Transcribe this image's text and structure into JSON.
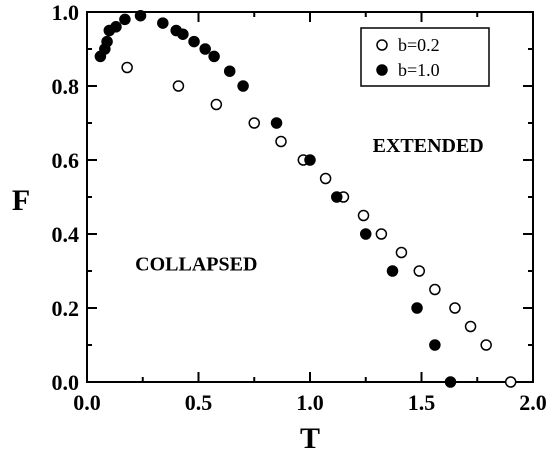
{
  "chart_data": {
    "type": "scatter",
    "xlabel": "T",
    "ylabel": "F",
    "xlim": [
      0.0,
      2.0
    ],
    "ylim": [
      0.0,
      1.0
    ],
    "x_ticks": [
      0.0,
      0.5,
      1.0,
      1.5,
      2.0
    ],
    "x_tick_labels": [
      "0.0",
      "0.5",
      "1.0",
      "1.5",
      "2.0"
    ],
    "y_ticks": [
      0.0,
      0.2,
      0.4,
      0.6,
      0.8,
      1.0
    ],
    "y_tick_labels": [
      "0.0",
      "0.2",
      "0.4",
      "0.6",
      "0.8",
      "1.0"
    ],
    "grid": false,
    "legend_position": "top-right",
    "annotations": [
      {
        "text": "EXTENDED",
        "x": 1.53,
        "y": 0.64
      },
      {
        "text": "COLLAPSED",
        "x": 0.49,
        "y": 0.32
      }
    ],
    "series": [
      {
        "name": "b=0.2",
        "marker": "open-circle",
        "color": "#000000",
        "points": [
          [
            0.18,
            0.85
          ],
          [
            0.41,
            0.8
          ],
          [
            0.58,
            0.75
          ],
          [
            0.75,
            0.7
          ],
          [
            0.87,
            0.65
          ],
          [
            0.97,
            0.6
          ],
          [
            1.07,
            0.55
          ],
          [
            1.15,
            0.5
          ],
          [
            1.24,
            0.45
          ],
          [
            1.32,
            0.4
          ],
          [
            1.41,
            0.35
          ],
          [
            1.49,
            0.3
          ],
          [
            1.56,
            0.25
          ],
          [
            1.65,
            0.2
          ],
          [
            1.72,
            0.15
          ],
          [
            1.79,
            0.1
          ],
          [
            1.9,
            0.0
          ]
        ]
      },
      {
        "name": "b=1.0",
        "marker": "filled-circle",
        "color": "#000000",
        "points": [
          [
            0.06,
            0.88
          ],
          [
            0.08,
            0.9
          ],
          [
            0.09,
            0.92
          ],
          [
            0.1,
            0.95
          ],
          [
            0.13,
            0.96
          ],
          [
            0.17,
            0.98
          ],
          [
            0.24,
            0.99
          ],
          [
            0.34,
            0.97
          ],
          [
            0.4,
            0.95
          ],
          [
            0.43,
            0.94
          ],
          [
            0.48,
            0.92
          ],
          [
            0.53,
            0.9
          ],
          [
            0.57,
            0.88
          ],
          [
            0.64,
            0.84
          ],
          [
            0.7,
            0.8
          ],
          [
            0.85,
            0.7
          ],
          [
            1.0,
            0.6
          ],
          [
            1.12,
            0.5
          ],
          [
            1.25,
            0.4
          ],
          [
            1.37,
            0.3
          ],
          [
            1.48,
            0.2
          ],
          [
            1.56,
            0.1
          ],
          [
            1.63,
            0.0
          ]
        ]
      }
    ]
  }
}
